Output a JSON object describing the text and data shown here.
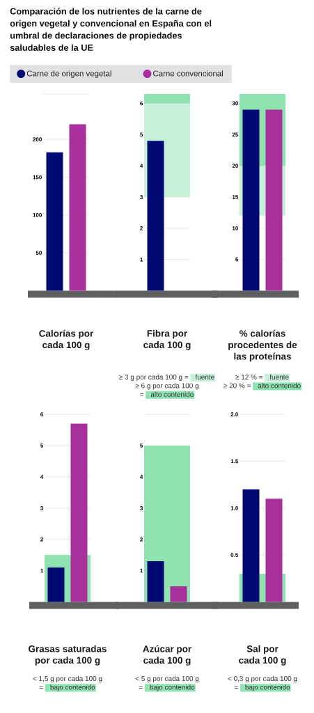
{
  "chart_data": [
    {
      "type": "bar",
      "title": "Comparación de los nutrientes de la carne de origen vegetal y convencional en España con el umbral de declaraciones de propiedades saludables de la UE",
      "xlabel": "Calorías por cada 100 g",
      "categories": [
        null
      ],
      "series": [
        {
          "name": "Carne de origen vegetal",
          "color": "#000a72",
          "values": [
            183
          ]
        },
        {
          "name": "Carne convencional",
          "color": "#a8309d",
          "values": [
            220
          ]
        }
      ],
      "ylim": [
        0,
        260
      ],
      "yticks": [
        50,
        100,
        150,
        200,
        {
          "value": 260,
          "label": null
        }
      ],
      "grid": "y",
      "legend": "top"
    },
    {
      "type": "bar",
      "xlabel": "Fibra por cada 100 g",
      "categories": [
        null
      ],
      "series": [
        {
          "color": "#000a72",
          "values": [
            4.8
          ]
        },
        {
          "values": [
            null
          ]
        }
      ],
      "ylim": [
        0,
        6.3
      ],
      "yticks": [
        1,
        2,
        3,
        4,
        5,
        6
      ],
      "grid": "y",
      "legend": "bottom",
      "bands": [
        {
          "axis": "y",
          "from": 3,
          "to": 6,
          "label": "fuente",
          "color": "#c6f0d9"
        },
        {
          "axis": "y",
          "from": 6,
          "to": 6.3,
          "label": "alto contenido",
          "color": "#8fe3b1"
        }
      ],
      "annotations": [
        "≥ 3 g por cada 100 g =",
        "≥ 6 g por cada 100 g ="
      ]
    },
    {
      "type": "bar",
      "xlabel": "% calorías procedentes de las proteínas",
      "categories": [
        null
      ],
      "series": [
        {
          "color": "#000a72",
          "values": [
            29
          ]
        },
        {
          "color": "#a8309d",
          "values": [
            29
          ]
        }
      ],
      "ylim": [
        0,
        31.5
      ],
      "yticks": [
        5,
        10,
        15,
        20,
        25,
        30
      ],
      "grid": "y",
      "legend": "bottom",
      "bands": [
        {
          "axis": "y",
          "from": 12,
          "to": 20,
          "label": "fuente",
          "color": "#c6f0d9"
        },
        {
          "axis": "y",
          "from": 20,
          "to": 31.5,
          "label": "alto contenido",
          "color": "#8fe3b1"
        }
      ],
      "annotations": [
        "≥ 12 % =",
        "≥ 20 % ="
      ]
    },
    {
      "type": "bar",
      "xlabel": "Grasas saturadas por cada 100 g",
      "categories": [
        null
      ],
      "series": [
        {
          "color": "#000a72",
          "values": [
            1.1
          ]
        },
        {
          "color": "#a8309d",
          "values": [
            5.7
          ]
        }
      ],
      "ylim": [
        0,
        6
      ],
      "yticks": [
        1,
        2,
        3,
        4,
        5,
        6
      ],
      "grid": "y",
      "legend": "bottom",
      "bands": [
        {
          "axis": "y",
          "from": 0,
          "to": 1.5,
          "label": "bajo contenido",
          "color": "#8fe3b1"
        }
      ],
      "annotations": [
        "< 1,5 g por cada 100 g ="
      ]
    },
    {
      "type": "bar",
      "xlabel": "Azúcar por cada 100 g",
      "categories": [
        null
      ],
      "series": [
        {
          "color": "#000a72",
          "values": [
            1.3
          ]
        },
        {
          "color": "#a8309d",
          "values": [
            0.5
          ]
        }
      ],
      "ylim": [
        0,
        6
      ],
      "yticks": [
        1,
        2,
        3,
        4,
        5,
        {
          "value": 6,
          "label": null
        }
      ],
      "grid": "y",
      "legend": "bottom",
      "bands": [
        {
          "axis": "y",
          "from": 0,
          "to": 5,
          "label": "bajo contenido",
          "color": "#8fe3b1"
        }
      ],
      "annotations": [
        "< 5 g por cada 100 g ="
      ]
    },
    {
      "type": "bar",
      "xlabel": "Sal por cada 100 g",
      "categories": [
        null
      ],
      "series": [
        {
          "color": "#000a72",
          "values": [
            1.2
          ]
        },
        {
          "color": "#a8309d",
          "values": [
            1.1
          ]
        }
      ],
      "ylim": [
        0,
        2
      ],
      "yticks": [
        0.5,
        {
          "value": 1,
          "label": "1.0"
        },
        1.5,
        {
          "value": 2,
          "label": "2.0"
        }
      ],
      "grid": "y",
      "legend": "bottom",
      "bands": [
        {
          "axis": "y",
          "from": 0,
          "to": 0.3,
          "label": "bajo contenido",
          "color": "#8fe3b1"
        }
      ],
      "annotations": [
        "< 0,3 g por cada 100 g ="
      ]
    }
  ]
}
